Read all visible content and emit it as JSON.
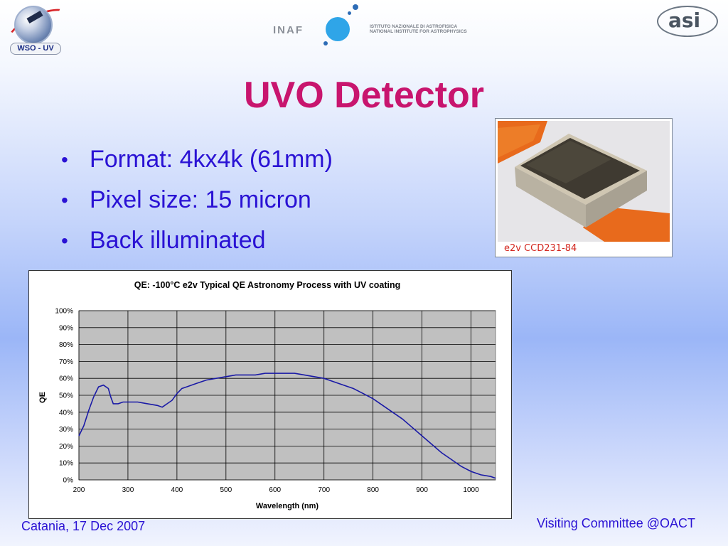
{
  "logos": {
    "left_label": "WSO - UV",
    "center_text": "INAF",
    "center_caption_line1": "ISTITUTO NAZIONALE DI ASTROFISICA",
    "center_caption_line2": "NATIONAL INSTITUTE FOR ASTROPHYSICS",
    "right_text": "asi"
  },
  "slide": {
    "title": "UVO Detector",
    "bullets": [
      "Format: 4kx4k (61mm)",
      "Pixel size: 15 micron",
      "Back illuminated"
    ],
    "photo_caption": "e2v CCD231-84"
  },
  "footer": {
    "left": "Catania, 17 Dec 2007",
    "right": "Visiting Committee @OACT"
  },
  "colors": {
    "title": "#c8156e",
    "text": "#2a12d4",
    "curve": "#1a1aa6",
    "plot_bg": "#c0c0c0"
  },
  "chart_data": {
    "type": "line",
    "title": "QE: -100°C  e2v Typical QE  Astronomy Process  with UV coating",
    "xlabel": "Wavelength (nm)",
    "ylabel": "QE",
    "xlim": [
      200,
      1050
    ],
    "ylim": [
      0,
      100
    ],
    "x_ticks": [
      200,
      300,
      400,
      500,
      600,
      700,
      800,
      900,
      1000
    ],
    "y_ticks": [
      "0%",
      "10%",
      "20%",
      "30%",
      "40%",
      "50%",
      "60%",
      "70%",
      "80%",
      "90%",
      "100%"
    ],
    "grid": true,
    "series": [
      {
        "x": [
          200,
          210,
          220,
          230,
          240,
          250,
          260,
          265,
          270,
          280,
          290,
          300,
          320,
          340,
          360,
          370,
          380,
          390,
          400,
          410,
          420,
          440,
          460,
          480,
          500,
          520,
          540,
          560,
          580,
          600,
          620,
          640,
          660,
          680,
          700,
          720,
          740,
          760,
          780,
          800,
          820,
          840,
          860,
          880,
          900,
          920,
          940,
          960,
          980,
          1000,
          1020,
          1040,
          1050
        ],
        "y": [
          26,
          32,
          41,
          49,
          55,
          56,
          54,
          49,
          45,
          45,
          46,
          46,
          46,
          45,
          44,
          43,
          45,
          47,
          51,
          54,
          55,
          57,
          59,
          60,
          61,
          62,
          62,
          62,
          63,
          63,
          63,
          63,
          62,
          61,
          60,
          58,
          56,
          54,
          51,
          48,
          44,
          40,
          36,
          31,
          26,
          21,
          16,
          12,
          8,
          5,
          3,
          2,
          1
        ]
      }
    ]
  }
}
